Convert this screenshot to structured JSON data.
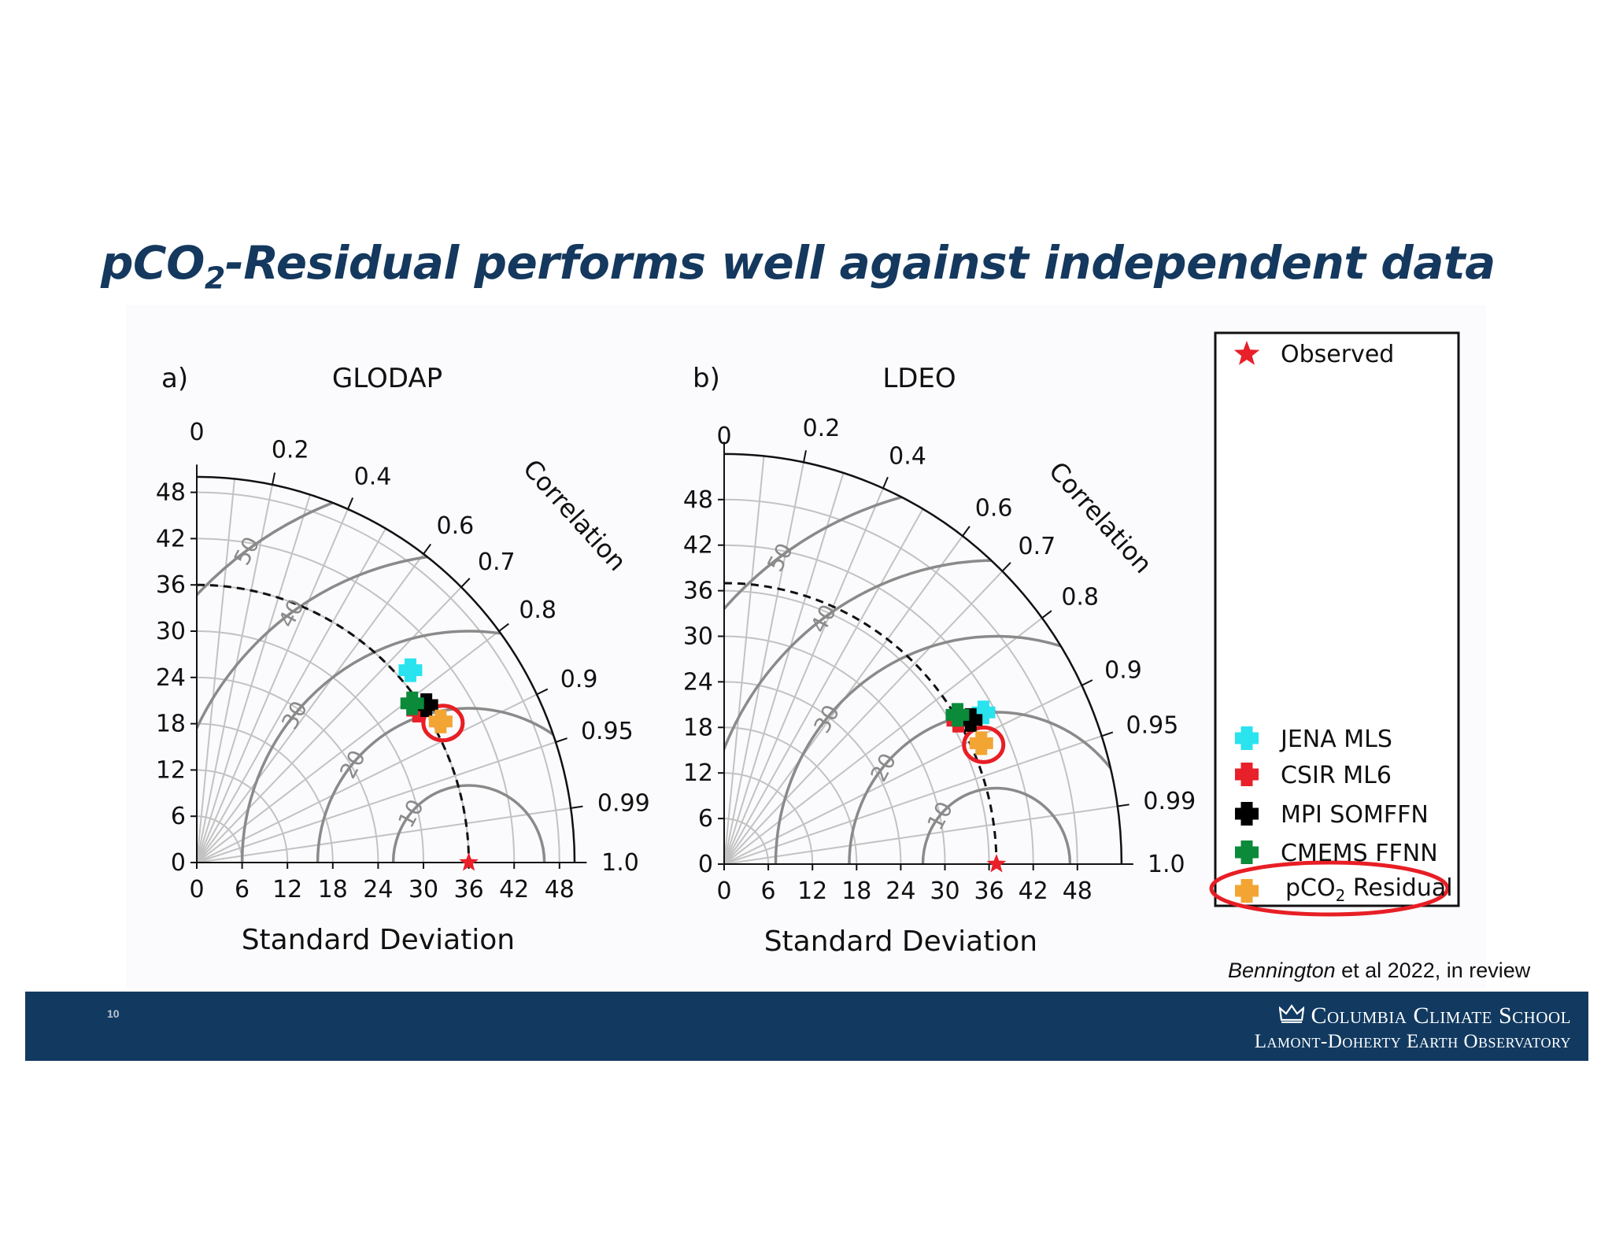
{
  "slide": {
    "title_prefix": "pCO",
    "title_sub": "2",
    "title_suffix": "-Residual performs well against independent data",
    "citation_author": "Bennington",
    "citation_rest": " et al 2022, in review",
    "page_number": "10",
    "footer_line1": "Columbia Climate School",
    "footer_line2": "Lamont-Doherty Earth Observatory",
    "footer_icon": "crown-icon"
  },
  "colors": {
    "title": "#14385e",
    "footer_bg": "#123a61",
    "observed": "#e8202a",
    "JENA MLS": "#29e3ee",
    "CSIR ML6": "#e8202a",
    "MPI SOMFFN": "#000000",
    "CMEMS FFNN": "#0b8a3a",
    "pCO2 Residual": "#f2a533",
    "highlight_ring": "#e81e25"
  },
  "legend": {
    "observed": "Observed",
    "items": [
      "JENA MLS",
      "CSIR ML6",
      "MPI SOMFFN",
      "CMEMS FFNN"
    ],
    "highlight_prefix": "pCO",
    "highlight_sub": "2",
    "highlight_suffix": " Residual"
  },
  "chart_data": [
    {
      "type": "scatter",
      "subtype": "taylor-diagram",
      "panel_label": "a)",
      "title": "GLODAP",
      "xlabel": "Standard Deviation",
      "arc_label": "Correlation",
      "radial_max": 50,
      "std_ticks": [
        0,
        6,
        12,
        18,
        24,
        30,
        36,
        42,
        48
      ],
      "correlation_ticks": [
        0,
        0.2,
        0.4,
        0.6,
        0.7,
        0.8,
        0.9,
        0.95,
        0.99,
        1.0
      ],
      "rmsd_contours": [
        10,
        20,
        30,
        40,
        50
      ],
      "reference_std": 36,
      "points": [
        {
          "name": "JENA MLS",
          "std": 37.7,
          "corr": 0.75
        },
        {
          "name": "CSIR ML6",
          "std": 35.3,
          "corr": 0.83
        },
        {
          "name": "MPI SOMFFN",
          "std": 36.6,
          "corr": 0.83
        },
        {
          "name": "CMEMS FFNN",
          "std": 35.2,
          "corr": 0.81
        },
        {
          "name": "pCO2 Residual",
          "std": 37.1,
          "corr": 0.87
        }
      ],
      "observed": {
        "std": 36,
        "corr": 1.0
      }
    },
    {
      "type": "scatter",
      "subtype": "taylor-diagram",
      "panel_label": "b)",
      "title": "LDEO",
      "xlabel": "Standard Deviation",
      "arc_label": "Correlation",
      "radial_max": 54,
      "std_ticks": [
        0,
        6,
        12,
        18,
        24,
        30,
        36,
        42,
        48
      ],
      "correlation_ticks": [
        0,
        0.2,
        0.4,
        0.6,
        0.7,
        0.8,
        0.9,
        0.95,
        0.99,
        1.0
      ],
      "rmsd_contours": [
        10,
        20,
        30,
        40,
        50
      ],
      "reference_std": 37,
      "points": [
        {
          "name": "JENA MLS",
          "std": 40.5,
          "corr": 0.87
        },
        {
          "name": "CSIR ML6",
          "std": 37.0,
          "corr": 0.86
        },
        {
          "name": "MPI SOMFFN",
          "std": 38.5,
          "corr": 0.87
        },
        {
          "name": "CMEMS FFNN",
          "std": 37.3,
          "corr": 0.85
        },
        {
          "name": "pCO2 Residual",
          "std": 38.4,
          "corr": 0.91
        }
      ],
      "observed": {
        "std": 37,
        "corr": 1.0
      }
    }
  ]
}
